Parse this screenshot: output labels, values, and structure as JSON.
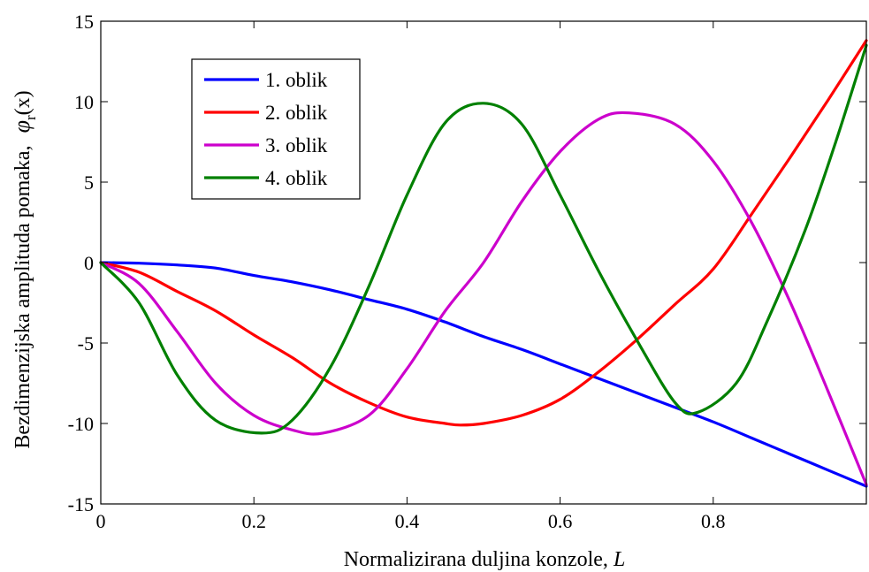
{
  "chart_data": {
    "type": "line",
    "xlabel": "Normalizirana duljina  konzole,",
    "xlabel_symbol": "L",
    "ylabel": "Bezdimenzijska amplituda pomaka,",
    "ylabel_symbol": "φ",
    "ylabel_subscript": "r",
    "ylabel_suffix": "(x)",
    "xlim": [
      0,
      1
    ],
    "ylim": [
      -15,
      15
    ],
    "xticks": [
      0,
      0.2,
      0.4,
      0.6,
      0.8
    ],
    "xtick_labels": [
      "0",
      "0.2",
      "0.4",
      "0.6",
      "0.8"
    ],
    "yticks": [
      -15,
      -10,
      -5,
      0,
      5,
      10,
      15
    ],
    "ytick_labels": [
      "-15",
      "-10",
      "-5",
      "0",
      "5",
      "10",
      "15"
    ],
    "grid": false,
    "legend_position": "top-left",
    "series": [
      {
        "name": "1. oblik",
        "color": "#0000ff",
        "x": [
          0,
          0.05,
          0.1,
          0.15,
          0.2,
          0.25,
          0.3,
          0.35,
          0.4,
          0.45,
          0.5,
          0.55,
          0.6,
          0.65,
          0.7,
          0.75,
          0.8,
          0.85,
          0.9,
          0.95,
          1.0
        ],
        "y": [
          0,
          -0.04,
          -0.15,
          -0.34,
          -0.8,
          -1.2,
          -1.7,
          -2.3,
          -2.9,
          -3.7,
          -4.6,
          -5.4,
          -6.3,
          -7.2,
          -8.1,
          -9.0,
          -9.9,
          -10.9,
          -11.9,
          -12.9,
          -13.9
        ]
      },
      {
        "name": "2. oblik",
        "color": "#ff0000",
        "x": [
          0,
          0.05,
          0.1,
          0.15,
          0.2,
          0.25,
          0.3,
          0.35,
          0.4,
          0.45,
          0.47,
          0.5,
          0.55,
          0.6,
          0.65,
          0.7,
          0.75,
          0.8,
          0.85,
          0.9,
          0.95,
          1.0
        ],
        "y": [
          0,
          -0.6,
          -1.8,
          -3.0,
          -4.5,
          -5.9,
          -7.5,
          -8.7,
          -9.6,
          -10.0,
          -10.1,
          -10.0,
          -9.5,
          -8.5,
          -6.8,
          -4.8,
          -2.6,
          -0.4,
          3.0,
          6.5,
          10.1,
          13.8
        ]
      },
      {
        "name": "3. oblik",
        "color": "#cc00cc",
        "x": [
          0,
          0.05,
          0.1,
          0.15,
          0.2,
          0.25,
          0.29,
          0.35,
          0.4,
          0.45,
          0.5,
          0.55,
          0.6,
          0.65,
          0.69,
          0.75,
          0.8,
          0.85,
          0.9,
          0.95,
          1.0
        ],
        "y": [
          0,
          -1.3,
          -4.3,
          -7.5,
          -9.5,
          -10.4,
          -10.6,
          -9.5,
          -6.6,
          -3.0,
          0.0,
          3.8,
          6.9,
          8.9,
          9.3,
          8.6,
          6.3,
          2.5,
          -2.4,
          -8.0,
          -13.8
        ]
      },
      {
        "name": "4. oblik",
        "color": "#008000",
        "x": [
          0,
          0.05,
          0.1,
          0.15,
          0.21,
          0.25,
          0.3,
          0.35,
          0.4,
          0.45,
          0.5,
          0.55,
          0.6,
          0.65,
          0.7,
          0.75,
          0.78,
          0.83,
          0.87,
          0.92,
          0.96,
          1.0
        ],
        "y": [
          0,
          -2.5,
          -7.0,
          -9.8,
          -10.6,
          -9.8,
          -6.5,
          -1.5,
          4.2,
          8.7,
          9.9,
          8.6,
          4.2,
          -0.5,
          -4.8,
          -8.7,
          -9.3,
          -7.5,
          -3.7,
          2.0,
          7.5,
          13.5
        ]
      }
    ]
  }
}
